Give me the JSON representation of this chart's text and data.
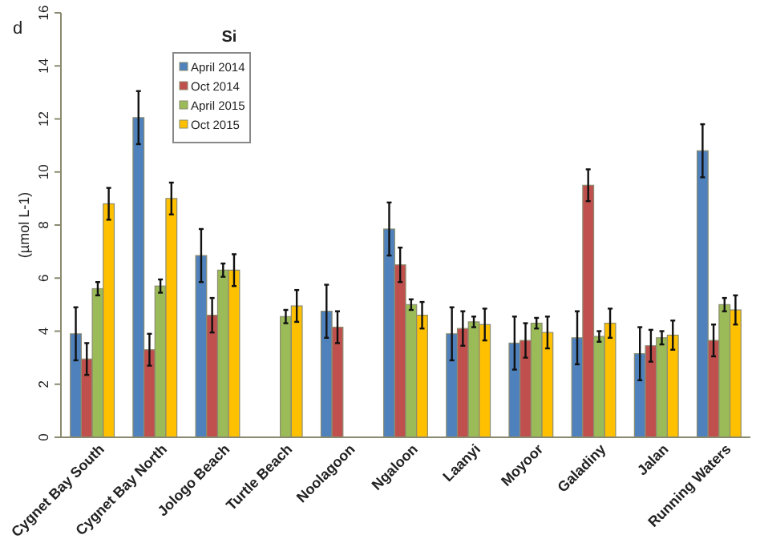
{
  "chart_data": {
    "type": "bar",
    "title": "Si",
    "ylabel": "(µmol L-1)",
    "annotations": [
      "d"
    ],
    "categories": [
      "Cygnet Bay South",
      "Cygnet Bay North",
      "Jologo Beach",
      "Turtle Beach",
      "Noolagoon",
      "Ngaloon",
      "Laanyi",
      "Moyoor",
      "Galadiny",
      "Jalan",
      "Running Waters"
    ],
    "series": [
      {
        "name": "April 2014",
        "color": "#4f81bd",
        "values": [
          3.9,
          12.05,
          6.85,
          null,
          4.75,
          7.85,
          3.9,
          3.55,
          3.75,
          3.15,
          10.8
        ],
        "errors": [
          1,
          1,
          1,
          null,
          1,
          1,
          1,
          1,
          1,
          1,
          1
        ]
      },
      {
        "name": "Oct 2014",
        "color": "#c0504d",
        "values": [
          2.95,
          3.3,
          4.6,
          null,
          4.15,
          6.5,
          4.1,
          3.65,
          9.5,
          3.45,
          3.65
        ],
        "errors": [
          0.6,
          0.6,
          0.65,
          null,
          0.6,
          0.65,
          0.65,
          0.65,
          0.6,
          0.6,
          0.6
        ]
      },
      {
        "name": "April 2015",
        "color": "#9bbb59",
        "values": [
          5.6,
          5.7,
          6.3,
          4.55,
          null,
          5.0,
          4.35,
          4.3,
          3.8,
          3.75,
          5.0
        ],
        "errors": [
          0.25,
          0.25,
          0.25,
          0.25,
          null,
          0.2,
          0.2,
          0.2,
          0.2,
          0.25,
          0.25
        ]
      },
      {
        "name": "Oct 2015",
        "color": "#ffc000",
        "values": [
          8.8,
          9.0,
          6.3,
          4.95,
          null,
          4.6,
          4.25,
          3.95,
          4.3,
          3.85,
          4.8
        ],
        "errors": [
          0.6,
          0.6,
          0.6,
          0.6,
          null,
          0.5,
          0.6,
          0.6,
          0.55,
          0.55,
          0.55
        ]
      }
    ],
    "ylim": [
      0,
      16
    ],
    "yticks": [
      0,
      2,
      4,
      6,
      8,
      10,
      12,
      14,
      16
    ],
    "legend": "top left",
    "grid": false
  }
}
